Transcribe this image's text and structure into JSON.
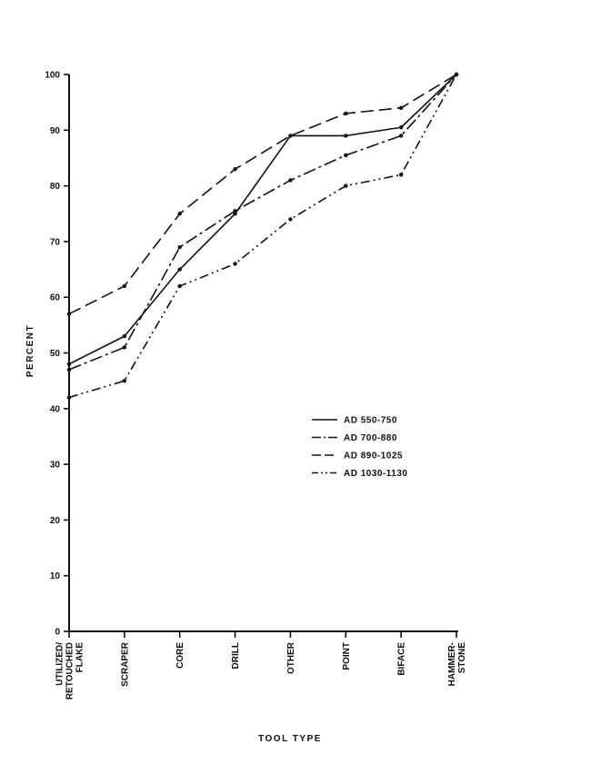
{
  "chart_data": {
    "type": "line",
    "title": "",
    "xlabel": "TOOL TYPE",
    "ylabel": "PERCENT",
    "ylim": [
      0,
      100
    ],
    "yticks": [
      0,
      10,
      20,
      30,
      40,
      50,
      60,
      70,
      80,
      90,
      100
    ],
    "categories": [
      [
        "UTILIZED/",
        "RETOUCHED",
        "FLAKE"
      ],
      [
        "SCRAPER"
      ],
      [
        "CORE"
      ],
      [
        "DRILL"
      ],
      [
        "OTHER"
      ],
      [
        "POINT"
      ],
      [
        "BIFACE"
      ],
      [
        "HAMMER-",
        "STONE"
      ]
    ],
    "grid": false,
    "legend_position": "center-right",
    "series": [
      {
        "name": "AD 550-750",
        "dash": "solid",
        "values": [
          48,
          53,
          65,
          75,
          89,
          89,
          90.5,
          100
        ]
      },
      {
        "name": "AD 700-880",
        "dash": "dash-dot",
        "values": [
          47,
          51,
          69,
          75.5,
          81,
          85.5,
          89,
          100
        ]
      },
      {
        "name": "AD 890-1025",
        "dash": "dashed",
        "values": [
          57,
          62,
          75,
          83,
          89,
          93,
          94,
          100
        ]
      },
      {
        "name": "AD 1030-1130",
        "dash": "dash-dot-dot",
        "values": [
          42,
          45,
          62,
          66,
          74,
          80,
          82,
          100
        ]
      }
    ],
    "line_color": "#111111"
  }
}
